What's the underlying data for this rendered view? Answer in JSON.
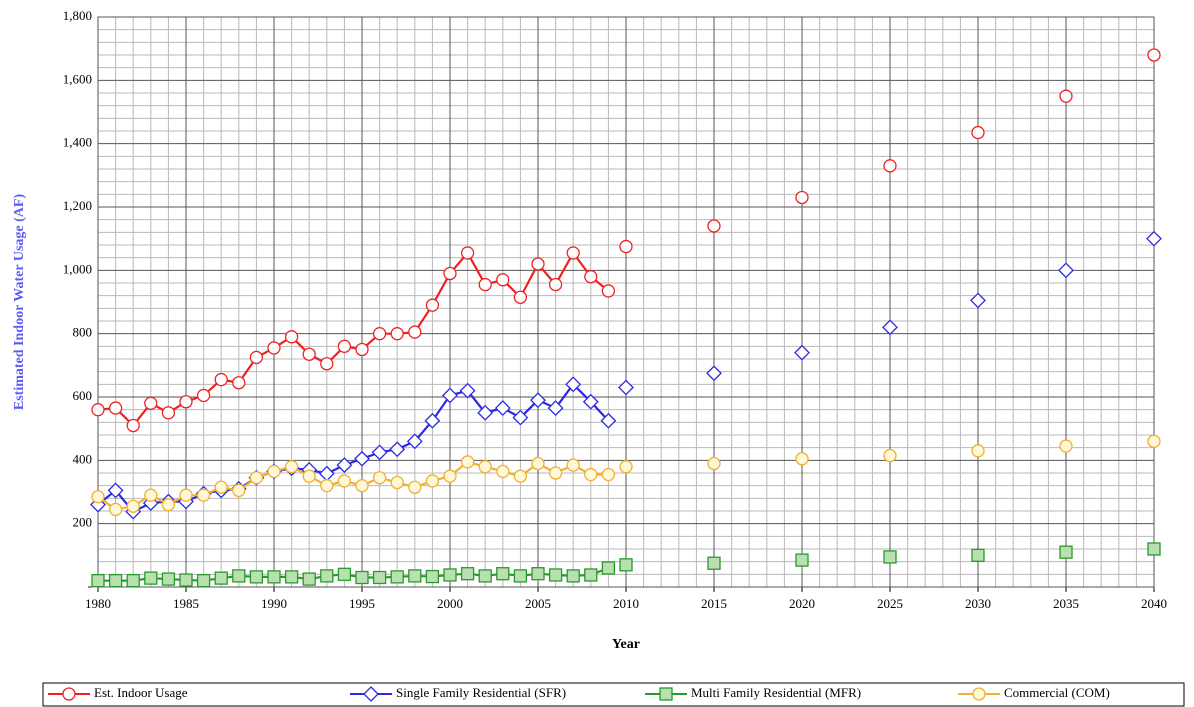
{
  "chart_data": {
    "type": "line",
    "y_label": "Estimated Indoor Water Usage (AF)",
    "x_label": "Year",
    "x": [
      1980,
      1981,
      1982,
      1983,
      1984,
      1985,
      1986,
      1987,
      1988,
      1989,
      1990,
      1991,
      1992,
      1993,
      1994,
      1995,
      1996,
      1997,
      1998,
      1999,
      2000,
      2001,
      2002,
      2003,
      2004,
      2005,
      2006,
      2007,
      2008,
      2009,
      2010,
      2015,
      2020,
      2025,
      2030,
      2035,
      2040
    ],
    "projection_start": 2010,
    "series": [
      {
        "name": "Est. Indoor Usage",
        "color": "#ee2222",
        "marker": "circle",
        "values": [
          560,
          565,
          510,
          580,
          550,
          585,
          605,
          655,
          645,
          725,
          755,
          790,
          735,
          705,
          760,
          750,
          800,
          800,
          805,
          890,
          990,
          1055,
          955,
          970,
          915,
          1020,
          955,
          1055,
          980,
          935,
          1075,
          1140,
          1230,
          1330,
          1435,
          1550,
          1680
        ]
      },
      {
        "name": "Single Family Residential (SFR)",
        "color": "#2a2ae0",
        "marker": "diamond",
        "values": [
          260,
          305,
          238,
          265,
          270,
          270,
          295,
          305,
          310,
          345,
          365,
          375,
          370,
          358,
          385,
          405,
          425,
          435,
          460,
          525,
          605,
          620,
          550,
          565,
          535,
          590,
          565,
          640,
          585,
          525,
          630,
          675,
          740,
          820,
          905,
          1000,
          1100
        ]
      },
      {
        "name": "Multi Family Residential (MFR)",
        "color": "#2a9a2a",
        "marker": "square",
        "values": [
          20,
          20,
          20,
          28,
          25,
          22,
          20,
          28,
          35,
          32,
          32,
          32,
          25,
          35,
          40,
          30,
          30,
          32,
          35,
          33,
          38,
          42,
          35,
          42,
          35,
          42,
          38,
          35,
          38,
          60,
          70,
          75,
          85,
          95,
          100,
          110,
          120
        ]
      },
      {
        "name": "Commercial (COM)",
        "color": "#f0b030",
        "marker": "circle",
        "values": [
          285,
          245,
          255,
          290,
          260,
          290,
          290,
          315,
          305,
          345,
          365,
          380,
          350,
          320,
          335,
          320,
          345,
          330,
          315,
          335,
          350,
          395,
          380,
          365,
          350,
          390,
          360,
          385,
          355,
          355,
          380,
          390,
          405,
          415,
          430,
          445,
          460
        ]
      }
    ],
    "xlim": [
      1980,
      2040
    ],
    "xticks": [
      1980,
      1985,
      1990,
      1995,
      2000,
      2005,
      2010,
      2015,
      2020,
      2025,
      2030,
      2035,
      2040
    ],
    "ylim": [
      0,
      1800
    ],
    "yticks": [
      {
        "value": 0,
        "label": "-"
      },
      200,
      400,
      600,
      800,
      {
        "value": 1000,
        "label": "1,000"
      },
      {
        "value": 1200,
        "label": "1,200"
      },
      {
        "value": 1400,
        "label": "1,400"
      },
      {
        "value": 1600,
        "label": "1,600"
      },
      {
        "value": 1800,
        "label": "1,800"
      }
    ],
    "grid": true,
    "minor_grid": true,
    "legend": "bottom"
  }
}
